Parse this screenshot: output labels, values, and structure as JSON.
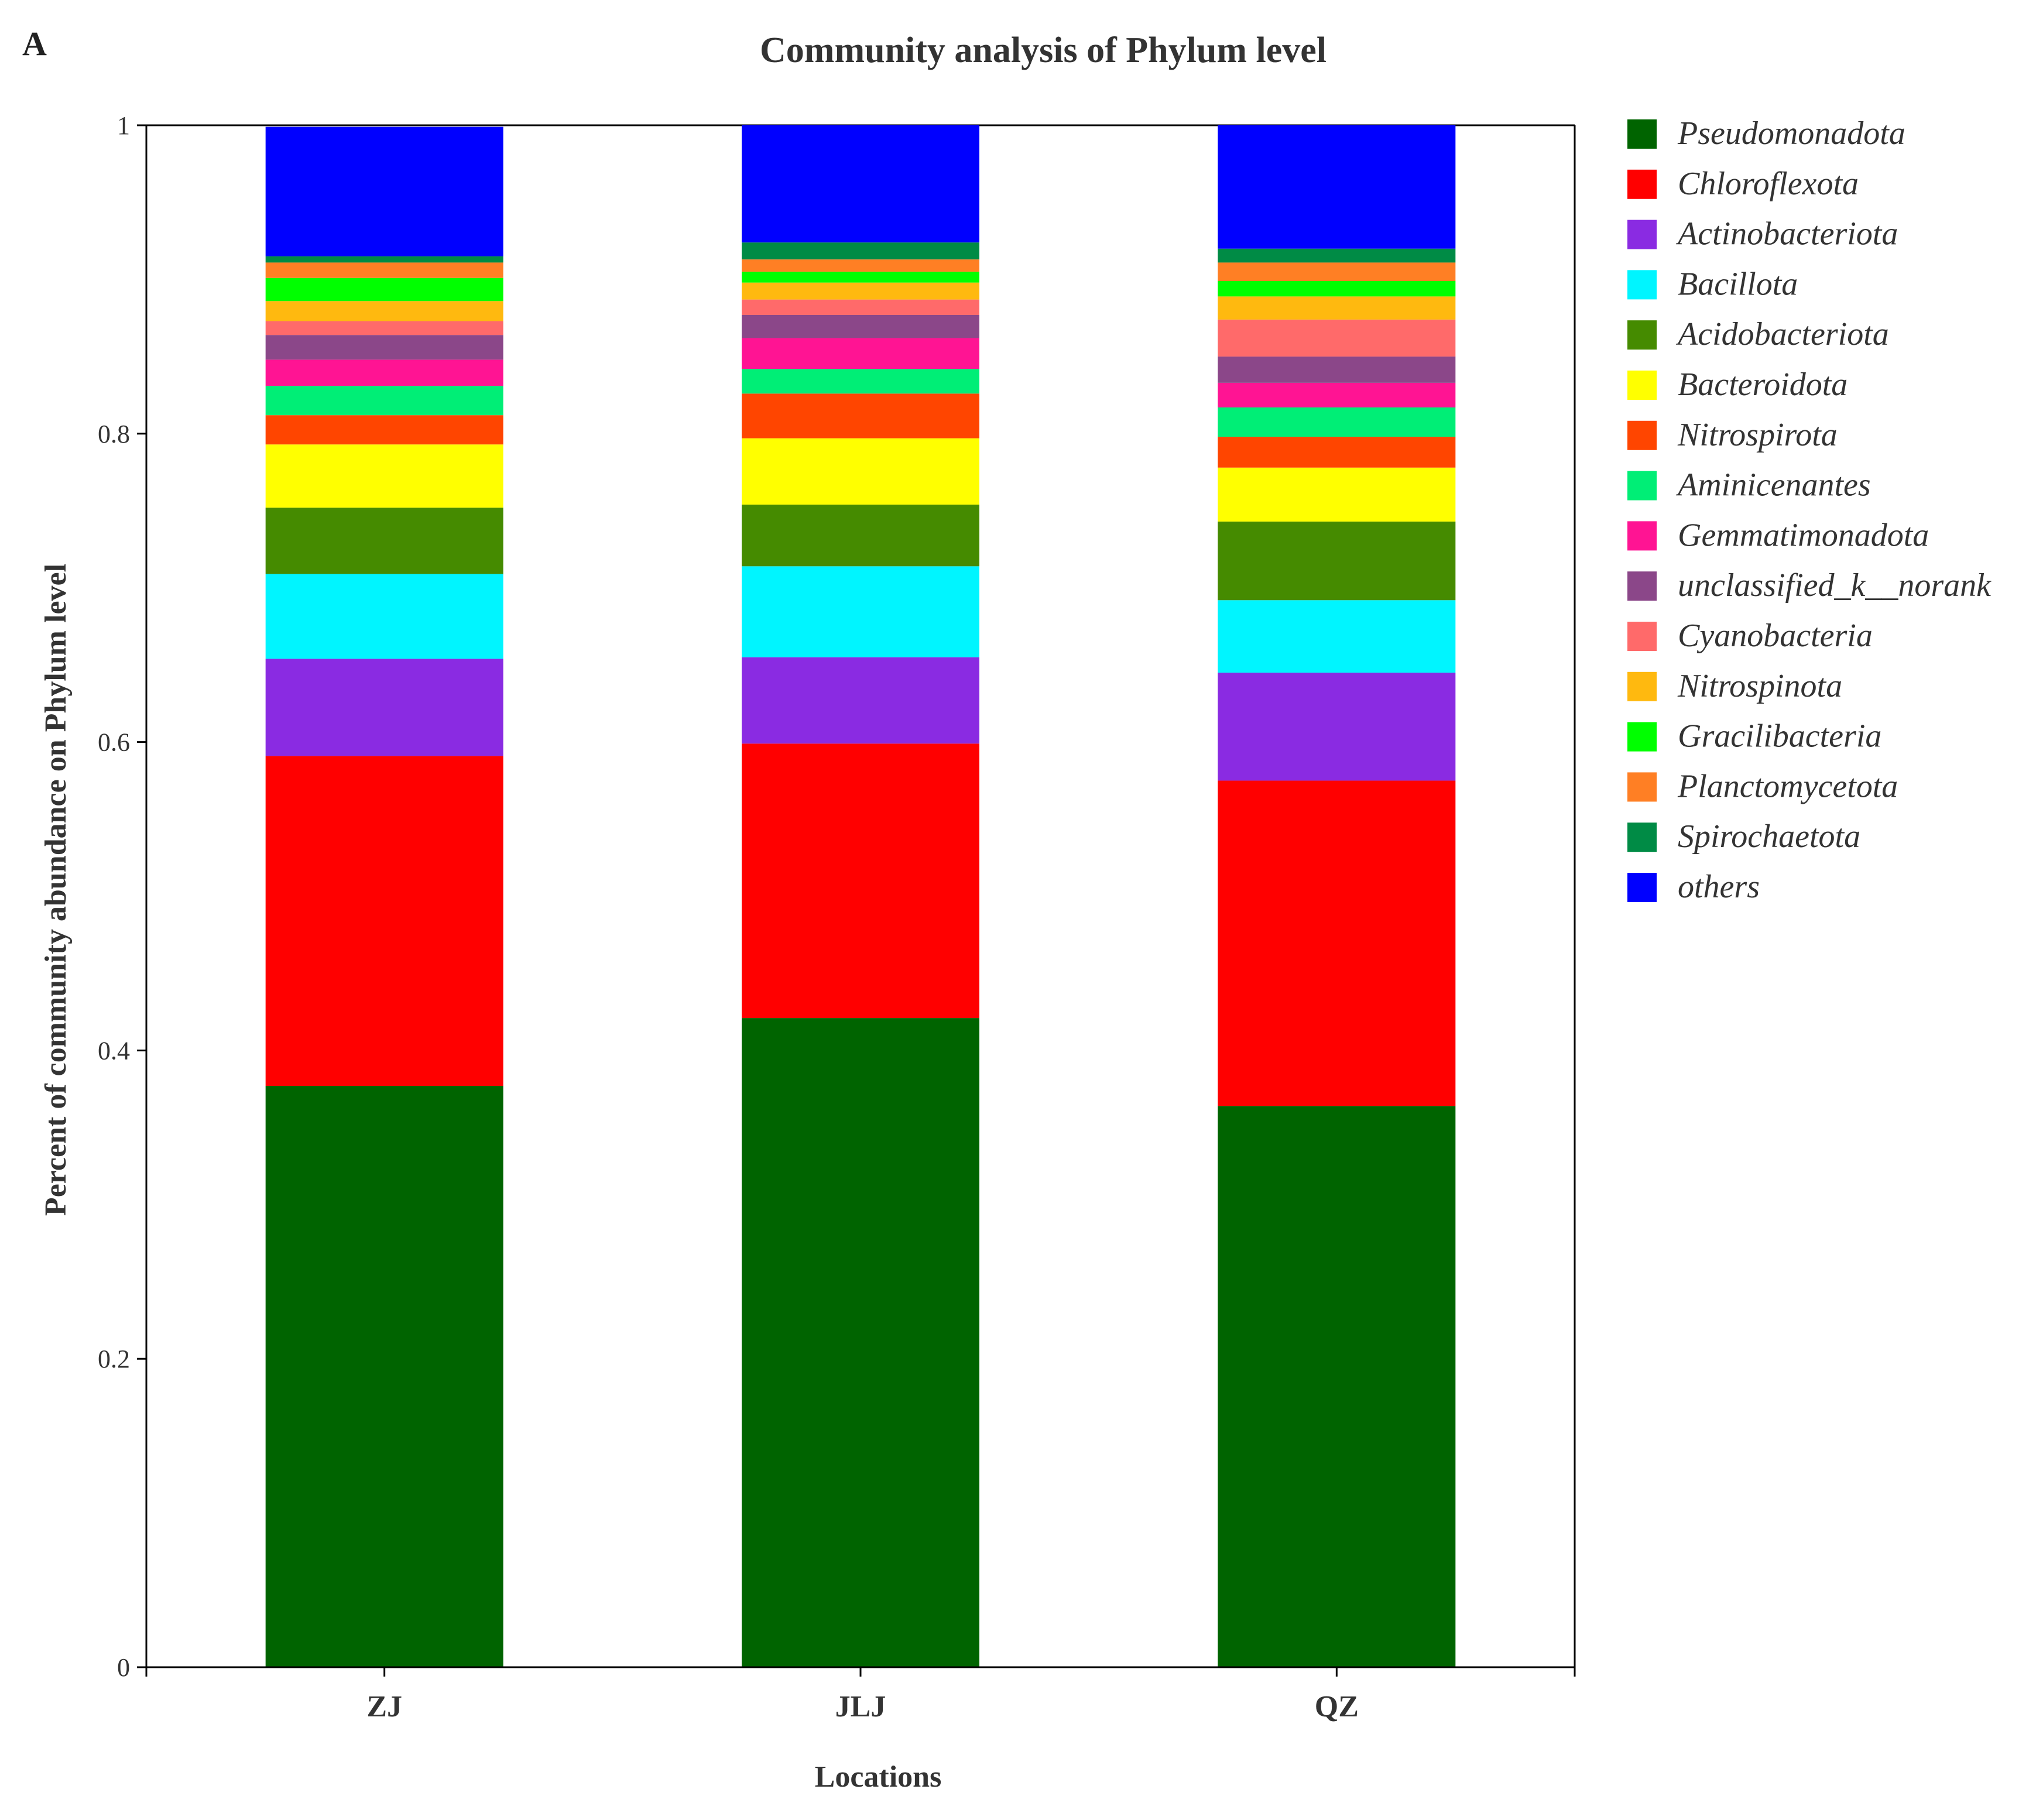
{
  "chart_data": {
    "type": "bar",
    "stacked": true,
    "panel_label": "A",
    "title": "Community analysis of Phylum level",
    "xlabel": "Locations",
    "ylabel": "Percent of community abundance on Phylum level",
    "ylim": [
      0,
      1
    ],
    "yticks": [
      "0",
      "0.2",
      "0.4",
      "0.6",
      "0.8",
      "1"
    ],
    "categories": [
      "ZJ",
      "JLJ",
      "QZ"
    ],
    "legend_position": "right",
    "series": [
      {
        "name": "Pseudomonadota",
        "color": "#006400",
        "values": [
          0.377,
          0.421,
          0.364
        ]
      },
      {
        "name": "Chloroflexota",
        "color": "#FF0000",
        "values": [
          0.214,
          0.178,
          0.211
        ]
      },
      {
        "name": "Actinobacteriota",
        "color": "#8A2BE2",
        "values": [
          0.063,
          0.056,
          0.07
        ]
      },
      {
        "name": "Bacillota",
        "color": "#00F5FF",
        "values": [
          0.055,
          0.059,
          0.047
        ]
      },
      {
        "name": "Acidobacteriota",
        "color": "#458B00",
        "values": [
          0.043,
          0.04,
          0.051
        ]
      },
      {
        "name": "Bacteroidota",
        "color": "#FFFF00",
        "values": [
          0.041,
          0.043,
          0.035
        ]
      },
      {
        "name": "Nitrospirota",
        "color": "#FF4500",
        "values": [
          0.019,
          0.029,
          0.02
        ]
      },
      {
        "name": "Aminicenantes",
        "color": "#00EE76",
        "values": [
          0.019,
          0.016,
          0.019
        ]
      },
      {
        "name": "Gemmatimonadota",
        "color": "#FF1493",
        "values": [
          0.017,
          0.02,
          0.016
        ]
      },
      {
        "name": "unclassified_k__norank",
        "color": "#8B4789",
        "values": [
          0.016,
          0.015,
          0.017
        ]
      },
      {
        "name": "Cyanobacteria",
        "color": "#FF6A6A",
        "values": [
          0.009,
          0.01,
          0.024
        ]
      },
      {
        "name": "Nitrospinota",
        "color": "#FFB90F",
        "values": [
          0.013,
          0.011,
          0.015
        ]
      },
      {
        "name": "Gracilibacteria",
        "color": "#00FF00",
        "values": [
          0.015,
          0.007,
          0.01
        ]
      },
      {
        "name": "Planctomycetota",
        "color": "#FF7F24",
        "values": [
          0.01,
          0.008,
          0.012
        ]
      },
      {
        "name": "Spirochaetota",
        "color": "#008B45",
        "values": [
          0.004,
          0.011,
          0.009
        ]
      },
      {
        "name": "others",
        "color": "#0000FF",
        "values": [
          0.084,
          0.076,
          0.08
        ]
      }
    ]
  }
}
